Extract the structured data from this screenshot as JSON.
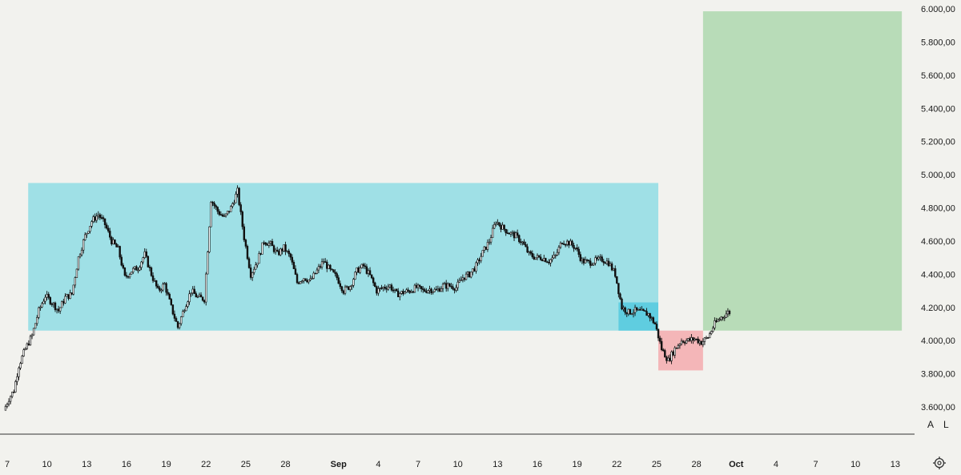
{
  "chart_data": {
    "type": "candlestick",
    "price_axis": {
      "ticks": [
        "3.600,00",
        "3.800,00",
        "4.000,00",
        "4.200,00",
        "4.400,00",
        "4.600,00",
        "4.800,00",
        "5.000,00",
        "5.200,00",
        "5.400,00",
        "5.600,00",
        "5.800,00",
        "6.000,00"
      ],
      "tick_values": [
        3600,
        3800,
        4000,
        4200,
        4400,
        4600,
        4800,
        5000,
        5200,
        5400,
        5600,
        5800,
        6000
      ],
      "ylim": [
        3540,
        6025
      ]
    },
    "time_axis": {
      "ticks": [
        {
          "label": "7",
          "date": "2025-08-07"
        },
        {
          "label": "10",
          "date": "2025-08-10"
        },
        {
          "label": "13",
          "date": "2025-08-13"
        },
        {
          "label": "16",
          "date": "2025-08-16"
        },
        {
          "label": "19",
          "date": "2025-08-19"
        },
        {
          "label": "22",
          "date": "2025-08-22"
        },
        {
          "label": "25",
          "date": "2025-08-25"
        },
        {
          "label": "28",
          "date": "2025-08-28"
        },
        {
          "label": "Sep",
          "date": "2025-09-01",
          "bold": true
        },
        {
          "label": "4",
          "date": "2025-09-04"
        },
        {
          "label": "7",
          "date": "2025-09-07"
        },
        {
          "label": "10",
          "date": "2025-09-10"
        },
        {
          "label": "13",
          "date": "2025-09-13"
        },
        {
          "label": "16",
          "date": "2025-09-16"
        },
        {
          "label": "19",
          "date": "2025-09-19"
        },
        {
          "label": "22",
          "date": "2025-09-22"
        },
        {
          "label": "25",
          "date": "2025-09-25"
        },
        {
          "label": "28",
          "date": "2025-09-28"
        },
        {
          "label": "Oct",
          "date": "2025-10-01",
          "bold": true
        },
        {
          "label": "4",
          "date": "2025-10-04"
        },
        {
          "label": "7",
          "date": "2025-10-07"
        },
        {
          "label": "10",
          "date": "2025-10-10"
        },
        {
          "label": "13",
          "date": "2025-10-13"
        }
      ]
    },
    "price_path": [
      [
        "2025-08-06T21:00",
        3580
      ],
      [
        "2025-08-07T06:00",
        3650
      ],
      [
        "2025-08-07T15:00",
        3700
      ],
      [
        "2025-08-08T00:00",
        3850
      ],
      [
        "2025-08-08T12:00",
        3950
      ],
      [
        "2025-08-09T00:00",
        4030
      ],
      [
        "2025-08-09T12:00",
        4180
      ],
      [
        "2025-08-10T00:00",
        4270
      ],
      [
        "2025-08-10T12:00",
        4230
      ],
      [
        "2025-08-11T00:00",
        4180
      ],
      [
        "2025-08-11T12:00",
        4260
      ],
      [
        "2025-08-12T00:00",
        4280
      ],
      [
        "2025-08-12T12:00",
        4500
      ],
      [
        "2025-08-13T00:00",
        4630
      ],
      [
        "2025-08-13T12:00",
        4720
      ],
      [
        "2025-08-14T00:00",
        4760
      ],
      [
        "2025-08-14T12:00",
        4700
      ],
      [
        "2025-08-15T00:00",
        4600
      ],
      [
        "2025-08-15T12:00",
        4550
      ],
      [
        "2025-08-16T00:00",
        4380
      ],
      [
        "2025-08-16T12:00",
        4420
      ],
      [
        "2025-08-17T00:00",
        4440
      ],
      [
        "2025-08-17T12:00",
        4520
      ],
      [
        "2025-08-18T00:00",
        4400
      ],
      [
        "2025-08-18T12:00",
        4300
      ],
      [
        "2025-08-19T00:00",
        4340
      ],
      [
        "2025-08-19T12:00",
        4200
      ],
      [
        "2025-08-20T00:00",
        4080
      ],
      [
        "2025-08-20T12:00",
        4200
      ],
      [
        "2025-08-21T00:00",
        4300
      ],
      [
        "2025-08-21T12:00",
        4260
      ],
      [
        "2025-08-22T00:00",
        4250
      ],
      [
        "2025-08-22T12:00",
        4850
      ],
      [
        "2025-08-23T00:00",
        4780
      ],
      [
        "2025-08-23T12:00",
        4740
      ],
      [
        "2025-08-24T00:00",
        4800
      ],
      [
        "2025-08-24T12:00",
        4900
      ],
      [
        "2025-08-25T00:00",
        4620
      ],
      [
        "2025-08-25T12:00",
        4400
      ],
      [
        "2025-08-26T00:00",
        4480
      ],
      [
        "2025-08-26T12:00",
        4600
      ],
      [
        "2025-08-27T00:00",
        4580
      ],
      [
        "2025-08-27T12:00",
        4520
      ],
      [
        "2025-08-28T00:00",
        4560
      ],
      [
        "2025-08-28T12:00",
        4500
      ],
      [
        "2025-08-29T00:00",
        4350
      ],
      [
        "2025-08-29T12:00",
        4380
      ],
      [
        "2025-08-30T00:00",
        4360
      ],
      [
        "2025-08-30T12:00",
        4420
      ],
      [
        "2025-08-31T00:00",
        4480
      ],
      [
        "2025-08-31T12:00",
        4420
      ],
      [
        "2025-09-01T00:00",
        4380
      ],
      [
        "2025-09-01T12:00",
        4300
      ],
      [
        "2025-09-02T00:00",
        4330
      ],
      [
        "2025-09-02T12:00",
        4420
      ],
      [
        "2025-09-03T00:00",
        4450
      ],
      [
        "2025-09-03T12:00",
        4390
      ],
      [
        "2025-09-04T00:00",
        4300
      ],
      [
        "2025-09-04T12:00",
        4320
      ],
      [
        "2025-09-05T00:00",
        4330
      ],
      [
        "2025-09-05T12:00",
        4280
      ],
      [
        "2025-09-06T00:00",
        4290
      ],
      [
        "2025-09-06T12:00",
        4300
      ],
      [
        "2025-09-07T00:00",
        4320
      ],
      [
        "2025-09-07T12:00",
        4300
      ],
      [
        "2025-09-08T00:00",
        4310
      ],
      [
        "2025-09-08T12:00",
        4300
      ],
      [
        "2025-09-09T00:00",
        4330
      ],
      [
        "2025-09-09T12:00",
        4330
      ],
      [
        "2025-09-10T00:00",
        4320
      ],
      [
        "2025-09-10T12:00",
        4380
      ],
      [
        "2025-09-11T00:00",
        4400
      ],
      [
        "2025-09-11T12:00",
        4450
      ],
      [
        "2025-09-12T00:00",
        4530
      ],
      [
        "2025-09-12T12:00",
        4600
      ],
      [
        "2025-09-13T00:00",
        4720
      ],
      [
        "2025-09-13T12:00",
        4680
      ],
      [
        "2025-09-14T00:00",
        4650
      ],
      [
        "2025-09-14T12:00",
        4630
      ],
      [
        "2025-09-15T00:00",
        4590
      ],
      [
        "2025-09-15T12:00",
        4520
      ],
      [
        "2025-09-16T00:00",
        4500
      ],
      [
        "2025-09-16T12:00",
        4500
      ],
      [
        "2025-09-17T00:00",
        4480
      ],
      [
        "2025-09-17T12:00",
        4510
      ],
      [
        "2025-09-18T00:00",
        4600
      ],
      [
        "2025-09-18T12:00",
        4590
      ],
      [
        "2025-09-19T00:00",
        4560
      ],
      [
        "2025-09-19T12:00",
        4480
      ],
      [
        "2025-09-20T00:00",
        4470
      ],
      [
        "2025-09-20T12:00",
        4480
      ],
      [
        "2025-09-21T00:00",
        4490
      ],
      [
        "2025-09-21T12:00",
        4470
      ],
      [
        "2025-09-22T00:00",
        4400
      ],
      [
        "2025-09-22T12:00",
        4200
      ],
      [
        "2025-09-23T00:00",
        4170
      ],
      [
        "2025-09-23T12:00",
        4180
      ],
      [
        "2025-09-24T00:00",
        4170
      ],
      [
        "2025-09-24T12:00",
        4160
      ],
      [
        "2025-09-25T00:00",
        4100
      ],
      [
        "2025-09-25T12:00",
        3950
      ],
      [
        "2025-09-26T00:00",
        3880
      ],
      [
        "2025-09-26T12:00",
        3950
      ],
      [
        "2025-09-27T00:00",
        4000
      ],
      [
        "2025-09-27T12:00",
        4000
      ],
      [
        "2025-09-28T00:00",
        4010
      ],
      [
        "2025-09-28T12:00",
        3990
      ],
      [
        "2025-09-29T00:00",
        4020
      ],
      [
        "2025-09-29T12:00",
        4100
      ],
      [
        "2025-09-30T00:00",
        4140
      ],
      [
        "2025-09-30T12:00",
        4170
      ]
    ],
    "zones": [
      {
        "name": "range",
        "color": "#9fe0e6",
        "from": "2025-08-08T14:00",
        "to": "2025-09-25T03:00",
        "low": 4060,
        "high": 4950
      },
      {
        "name": "range-low",
        "color": "#5fcde0",
        "from": "2025-09-22T03:00",
        "to": "2025-09-25T03:00",
        "low": 4060,
        "high": 4230
      },
      {
        "name": "stop",
        "color": "#f4b6b8",
        "from": "2025-09-25T03:00",
        "to": "2025-09-28T12:00",
        "low": 3820,
        "high": 4060
      },
      {
        "name": "target",
        "color": "#b8dcb8",
        "from": "2025-09-28T12:00",
        "to": "2025-10-13T12:00",
        "low": 4060,
        "high": 5985
      }
    ],
    "colors": {
      "background": "#f2f2ee",
      "candle": "#111111",
      "text": "#1a1a1a",
      "axis_line": "#333333"
    }
  },
  "scale_buttons": {
    "auto": "A",
    "log": "L"
  },
  "settings_icon": "gear-icon"
}
